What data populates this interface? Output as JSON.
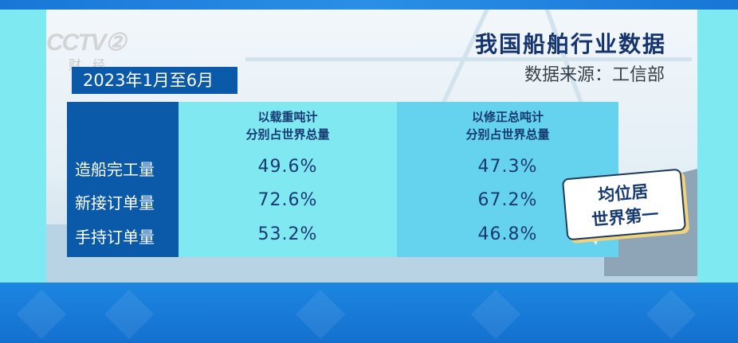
{
  "branding": {
    "logo_text": "CCTV 2",
    "channel_name": "财经"
  },
  "date_range": "2023年1月至6月",
  "title": "我国船舶行业数据",
  "source": "数据来源：工信部",
  "callout": {
    "line1": "均位居",
    "line2": "世界第一"
  },
  "colors": {
    "label_column": "#0b5aa9",
    "column1": "#7fe8f1",
    "column2": "#66d3ee",
    "text": "#173a72"
  },
  "chart_data": {
    "type": "table",
    "columns": [
      {
        "line1": "以载重吨计",
        "line2": "分别占世界总量"
      },
      {
        "line1": "以修正总吨计",
        "line2": "分别占世界总量"
      }
    ],
    "rows": [
      {
        "label": "造船完工量",
        "values": [
          "49.6%",
          "47.3%"
        ]
      },
      {
        "label": "新接订单量",
        "values": [
          "72.6%",
          "67.2%"
        ]
      },
      {
        "label": "手持订单量",
        "values": [
          "53.2%",
          "46.8%"
        ]
      }
    ]
  }
}
